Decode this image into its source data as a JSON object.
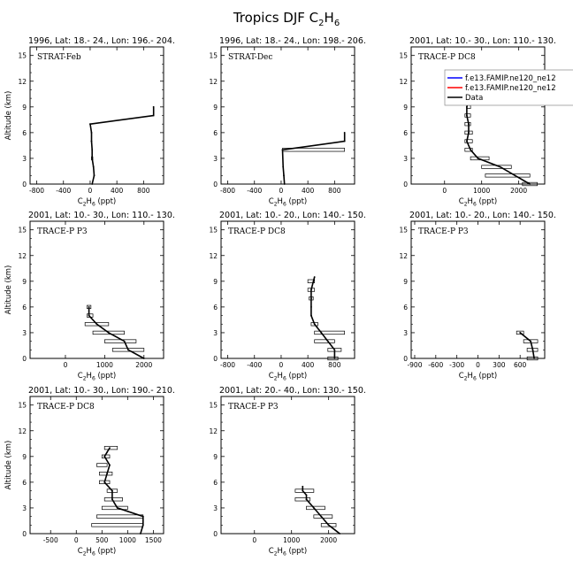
{
  "title": "Tropics DJF C",
  "title_sub": "2",
  "title_suffix": "H",
  "title_sub2": "6",
  "common": {
    "ylabel": "Altitude (km)",
    "xlabel_main": "C",
    "xlabel_sub1": "2",
    "xlabel_mid": "H",
    "xlabel_sub2": "6",
    "xlabel_suffix": " (ppt)",
    "yticks": [
      "0",
      "3",
      "6",
      "9",
      "12",
      "15"
    ]
  },
  "legend": {
    "entries": [
      {
        "label": "f.e13.FAMIP.ne120_ne12",
        "color": "#0000ff"
      },
      {
        "label": "f.e13.FAMIP.ne120_ne12",
        "color": "#ff0000"
      },
      {
        "label": "Data",
        "color": "#000000"
      }
    ]
  },
  "chart_data": [
    {
      "type": "line",
      "title": "1996, Lat: 18.- 24., Lon: 196.- 204.",
      "label": "STRAT-Feb",
      "xlim": [
        -900,
        1100
      ],
      "ylim": [
        0,
        16
      ],
      "xticks": [
        -800,
        -400,
        0,
        400,
        800
      ],
      "series": [
        {
          "x": [
            30,
            60,
            50,
            30,
            30,
            20,
            20,
            0,
            950,
            950
          ],
          "y": [
            0,
            1,
            2,
            3,
            4,
            5,
            6,
            7,
            8,
            9
          ]
        }
      ],
      "errors": [
        {
          "y": 3,
          "lo": 20,
          "hi": 40
        }
      ]
    },
    {
      "type": "line",
      "title": "1996, Lat: 18.- 24., Lon: 198.- 206.",
      "label": "STRAT-Dec",
      "xlim": [
        -900,
        1100
      ],
      "ylim": [
        0,
        16
      ],
      "xticks": [
        -800,
        -400,
        0,
        400,
        800
      ],
      "series": [
        {
          "x": [
            50,
            40,
            30,
            20,
            950,
            950
          ],
          "y": [
            0,
            1,
            2,
            4,
            5,
            6
          ]
        }
      ],
      "errors": [
        {
          "y": 4,
          "lo": 20,
          "hi": 950
        }
      ]
    },
    {
      "type": "line",
      "title": "2001, Lat: 10.- 30., Lon: 110.- 130.",
      "label": "TRACE-P DC8",
      "xlim": [
        -900,
        2700
      ],
      "ylim": [
        0,
        16
      ],
      "xticks": [
        0,
        1000,
        2000
      ],
      "xticklabels": [
        "0",
        "1000",
        "2000"
      ],
      "series": [
        {
          "x": [
            2300,
            1900,
            1500,
            900,
            700,
            600,
            650,
            650,
            600,
            600,
            650
          ],
          "y": [
            0,
            1,
            2,
            3,
            4,
            5,
            6,
            7,
            8,
            9,
            10
          ]
        }
      ],
      "errors": [
        {
          "y": 0,
          "lo": 2100,
          "hi": 2500
        },
        {
          "y": 1,
          "lo": 1100,
          "hi": 2300
        },
        {
          "y": 2,
          "lo": 1000,
          "hi": 1800
        },
        {
          "y": 3,
          "lo": 700,
          "hi": 1200
        },
        {
          "y": 4,
          "lo": 550,
          "hi": 750
        },
        {
          "y": 5,
          "lo": 550,
          "hi": 750
        },
        {
          "y": 6,
          "lo": 550,
          "hi": 750
        },
        {
          "y": 7,
          "lo": 550,
          "hi": 700
        },
        {
          "y": 8,
          "lo": 550,
          "hi": 700
        },
        {
          "y": 9,
          "lo": 600,
          "hi": 700
        }
      ]
    },
    {
      "type": "line",
      "title": "2001, Lat: 10.- 30., Lon: 110.- 130.",
      "label": "TRACE-P P3",
      "xlim": [
        -900,
        2500
      ],
      "ylim": [
        0,
        16
      ],
      "xticks": [
        0,
        1000,
        2000
      ],
      "xticklabels": [
        "0",
        "1000",
        "2000"
      ],
      "series": [
        {
          "x": [
            2000,
            1600,
            1500,
            1100,
            800,
            600,
            600
          ],
          "y": [
            0,
            1,
            2,
            3,
            4,
            5,
            6
          ]
        }
      ],
      "errors": [
        {
          "y": 1,
          "lo": 1200,
          "hi": 2000
        },
        {
          "y": 2,
          "lo": 1000,
          "hi": 1800
        },
        {
          "y": 3,
          "lo": 700,
          "hi": 1500
        },
        {
          "y": 4,
          "lo": 500,
          "hi": 1100
        },
        {
          "y": 5,
          "lo": 550,
          "hi": 700
        },
        {
          "y": 6,
          "lo": 550,
          "hi": 650
        }
      ]
    },
    {
      "type": "line",
      "title": "2001, Lat: 10.- 20., Lon: 140.- 150.",
      "label": "TRACE-P DC8",
      "xlim": [
        -900,
        1100
      ],
      "ylim": [
        0,
        16
      ],
      "xticks": [
        -800,
        -400,
        0,
        400,
        800
      ],
      "series": [
        {
          "x": [
            800,
            800,
            700,
            600,
            500,
            450,
            450,
            450,
            450,
            500
          ],
          "y": [
            0,
            1,
            2,
            3,
            4,
            5,
            6,
            7,
            8,
            9.5
          ]
        }
      ],
      "errors": [
        {
          "y": 0,
          "lo": 700,
          "hi": 850
        },
        {
          "y": 1,
          "lo": 700,
          "hi": 900
        },
        {
          "y": 2,
          "lo": 500,
          "hi": 800
        },
        {
          "y": 3,
          "lo": 500,
          "hi": 950
        },
        {
          "y": 4,
          "lo": 450,
          "hi": 550
        },
        {
          "y": 7,
          "lo": 420,
          "hi": 480
        },
        {
          "y": 8,
          "lo": 400,
          "hi": 500
        },
        {
          "y": 9,
          "lo": 400,
          "hi": 500
        }
      ]
    },
    {
      "type": "line",
      "title": "2001, Lat: 10.- 20., Lon: 140.- 150.",
      "label": "TRACE-P P3",
      "xlim": [
        -950,
        950
      ],
      "ylim": [
        0,
        16
      ],
      "xticks": [
        -900,
        -600,
        -300,
        0,
        300,
        600
      ],
      "xticklabels": [
        "-900",
        "-600",
        "-300",
        "0",
        "300",
        "600"
      ],
      "series": [
        {
          "x": [
            800,
            780,
            750,
            600
          ],
          "y": [
            0,
            1,
            2,
            3
          ]
        }
      ],
      "errors": [
        {
          "y": 0,
          "lo": 700,
          "hi": 850
        },
        {
          "y": 1,
          "lo": 700,
          "hi": 850
        },
        {
          "y": 2,
          "lo": 650,
          "hi": 850
        },
        {
          "y": 3,
          "lo": 550,
          "hi": 650
        }
      ]
    },
    {
      "type": "line",
      "title": "2001, Lat: 10.- 30., Lon: 190.- 210.",
      "label": "TRACE-P DC8",
      "xlim": [
        -900,
        1700
      ],
      "ylim": [
        0,
        16
      ],
      "xticks": [
        -500,
        0,
        500,
        1000,
        1500
      ],
      "xticklabels": [
        "-500",
        "0",
        "500",
        "1000",
        "1500"
      ],
      "series": [
        {
          "x": [
            1250,
            1300,
            1300,
            800,
            700,
            700,
            550,
            600,
            650,
            550,
            600,
            650
          ],
          "y": [
            0,
            1,
            2,
            3,
            4,
            5,
            6,
            7,
            8,
            9,
            9.5,
            10
          ]
        }
      ],
      "errors": [
        {
          "y": 1,
          "lo": 300,
          "hi": 1300
        },
        {
          "y": 2,
          "lo": 400,
          "hi": 1300
        },
        {
          "y": 3,
          "lo": 500,
          "hi": 1000
        },
        {
          "y": 4,
          "lo": 550,
          "hi": 900
        },
        {
          "y": 5,
          "lo": 600,
          "hi": 800
        },
        {
          "y": 6,
          "lo": 450,
          "hi": 650
        },
        {
          "y": 7,
          "lo": 450,
          "hi": 700
        },
        {
          "y": 8,
          "lo": 400,
          "hi": 600
        },
        {
          "y": 9,
          "lo": 500,
          "hi": 650
        },
        {
          "y": 10,
          "lo": 550,
          "hi": 800
        }
      ]
    },
    {
      "type": "line",
      "title": "2001, Lat: 20.- 40., Lon: 130.- 150.",
      "label": "TRACE-P P3",
      "xlim": [
        -900,
        2700
      ],
      "ylim": [
        0,
        16
      ],
      "xticks": [
        0,
        1000,
        2000
      ],
      "xticklabels": [
        "0",
        "1000",
        "2000"
      ],
      "series": [
        {
          "x": [
            2300,
            2000,
            1800,
            1600,
            1400,
            1400,
            1300,
            1300
          ],
          "y": [
            0,
            1,
            2,
            3,
            4,
            4.5,
            5,
            5.5
          ]
        }
      ],
      "errors": [
        {
          "y": 1,
          "lo": 1800,
          "hi": 2200
        },
        {
          "y": 2,
          "lo": 1600,
          "hi": 2100
        },
        {
          "y": 3,
          "lo": 1400,
          "hi": 1900
        },
        {
          "y": 4,
          "lo": 1100,
          "hi": 1500
        },
        {
          "y": 5,
          "lo": 1100,
          "hi": 1600
        }
      ]
    }
  ]
}
